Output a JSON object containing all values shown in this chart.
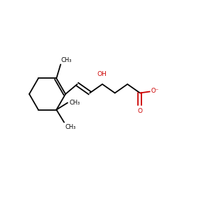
{
  "bg_color": "#ffffff",
  "bond_color": "#000000",
  "red_color": "#cc0000",
  "line_width": 1.3,
  "ring_color": "#000000",
  "CH3_top": "CH₃",
  "CH3_right": "CH₃",
  "CH3_bottom": "CH₃",
  "OH_label": "OH",
  "O_label": "O",
  "O_minus_label": "O⁻",
  "font_size": 6.0
}
